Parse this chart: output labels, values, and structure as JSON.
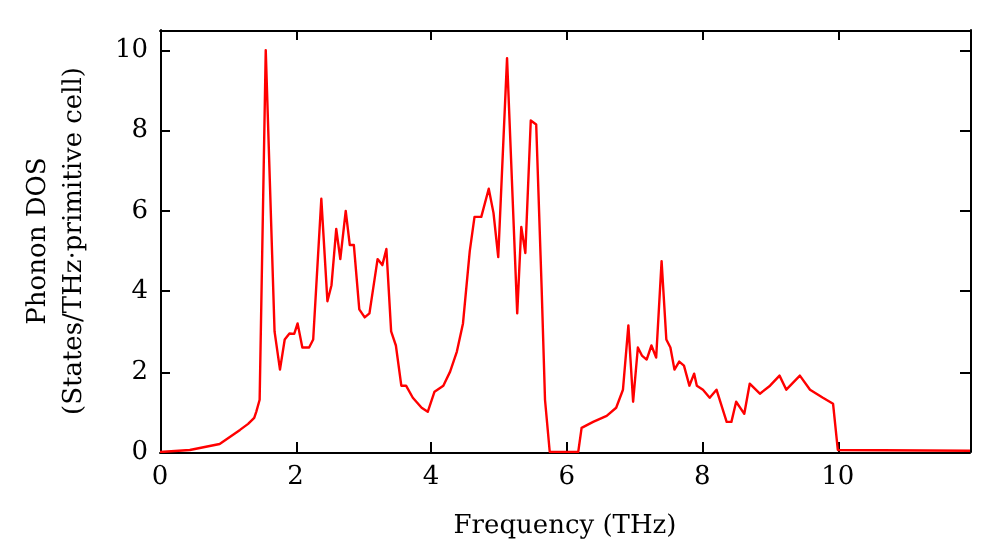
{
  "chart_data": {
    "type": "line",
    "xlabel": "Frequency (THz)",
    "ylabel": "Phonon DOS\n(States/THz·primitive cell)",
    "xlim": [
      0,
      11.95
    ],
    "ylim": [
      0,
      10.5
    ],
    "xticks": [
      0,
      2,
      4,
      6,
      8,
      10
    ],
    "yticks": [
      0,
      2,
      4,
      6,
      8,
      10
    ],
    "grid": false,
    "marker": "none",
    "line_style": "solid",
    "series": [
      {
        "color": "#ff0000",
        "x": [
          0,
          0.44,
          0.88,
          1.18,
          1.3,
          1.39,
          1.42,
          1.47,
          1.56,
          1.69,
          1.77,
          1.84,
          1.91,
          1.98,
          2.03,
          2.1,
          2.2,
          2.26,
          2.38,
          2.47,
          2.53,
          2.6,
          2.66,
          2.74,
          2.8,
          2.86,
          2.94,
          3.02,
          3.09,
          3.21,
          3.28,
          3.34,
          3.41,
          3.48,
          3.56,
          3.63,
          3.73,
          3.86,
          3.95,
          4.05,
          4.18,
          4.28,
          4.38,
          4.47,
          4.57,
          4.64,
          4.74,
          4.85,
          4.92,
          4.99,
          5.12,
          5.27,
          5.33,
          5.39,
          5.47,
          5.55,
          5.63,
          5.68,
          5.75,
          6.17,
          6.22,
          6.39,
          6.59,
          6.73,
          6.83,
          6.91,
          6.98,
          7.05,
          7.11,
          7.18,
          7.25,
          7.32,
          7.4,
          7.47,
          7.53,
          7.59,
          7.66,
          7.73,
          7.81,
          7.88,
          7.92,
          8.01,
          8.11,
          8.21,
          8.36,
          8.43,
          8.5,
          8.62,
          8.7,
          8.85,
          9.0,
          9.14,
          9.24,
          9.44,
          9.59,
          9.78,
          9.93,
          10.0,
          11.95
        ],
        "values": [
          0,
          0.05,
          0.2,
          0.55,
          0.7,
          0.85,
          1.0,
          1.3,
          10.0,
          3.0,
          2.05,
          2.8,
          2.95,
          2.94,
          3.2,
          2.6,
          2.6,
          2.8,
          6.3,
          3.75,
          4.15,
          5.55,
          4.8,
          6.0,
          5.15,
          5.15,
          3.55,
          3.35,
          3.45,
          4.8,
          4.65,
          5.05,
          3.0,
          2.65,
          1.65,
          1.65,
          1.35,
          1.1,
          1.0,
          1.5,
          1.65,
          2.0,
          2.5,
          3.2,
          5.0,
          5.85,
          5.85,
          6.55,
          5.95,
          4.85,
          9.8,
          3.45,
          5.6,
          4.95,
          8.25,
          8.15,
          4.1,
          1.3,
          0,
          0,
          0.6,
          0.75,
          0.9,
          1.1,
          1.55,
          3.15,
          1.25,
          2.6,
          2.4,
          2.3,
          2.65,
          2.35,
          4.75,
          2.8,
          2.6,
          2.05,
          2.25,
          2.15,
          1.65,
          1.95,
          1.65,
          1.55,
          1.35,
          1.55,
          0.75,
          0.75,
          1.25,
          0.95,
          1.7,
          1.45,
          1.65,
          1.9,
          1.55,
          1.9,
          1.55,
          1.35,
          1.2,
          0.05,
          0.03
        ]
      }
    ]
  }
}
